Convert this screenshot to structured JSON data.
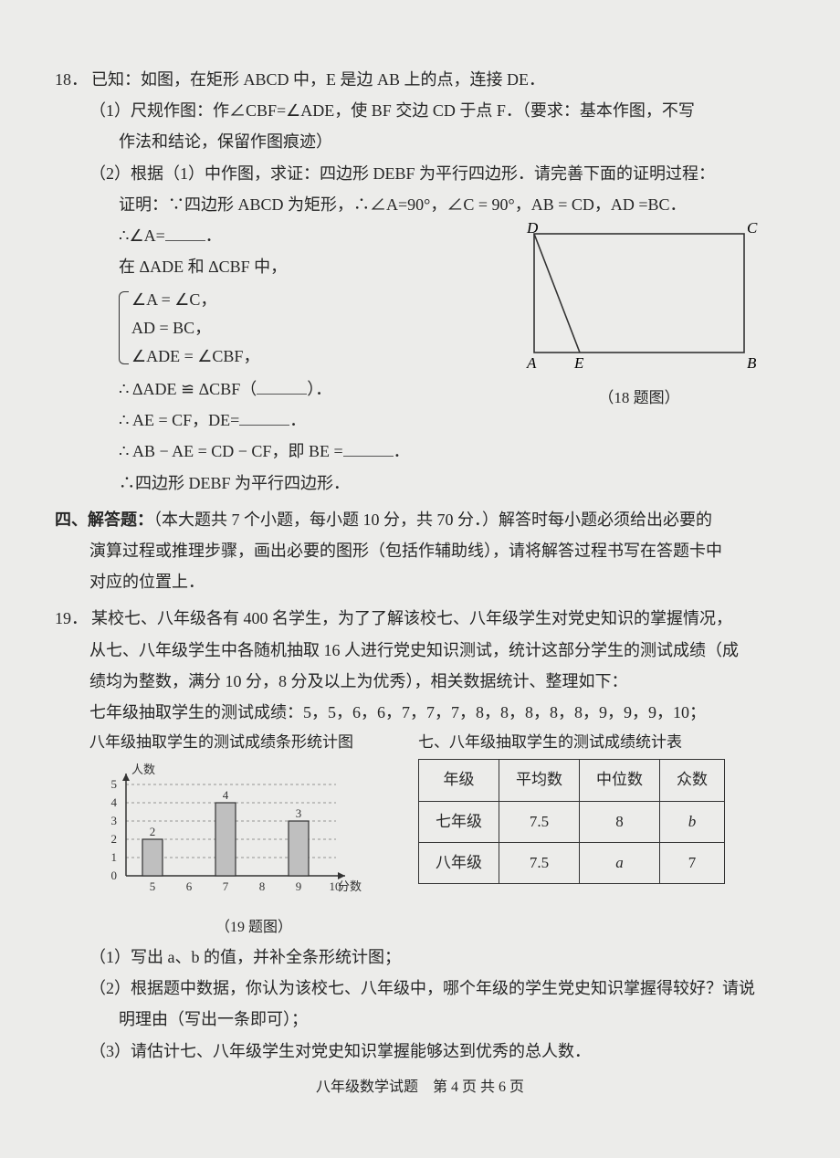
{
  "q18": {
    "num": "18．",
    "stem": "已知：如图，在矩形 ABCD 中，E 是边 AB 上的点，连接 DE．",
    "p1a": "（1）尺规作图：作∠CBF=∠ADE，使 BF 交边 CD 于点 F．（要求：基本作图，不写",
    "p1b": "作法和结论，保留作图痕迹）",
    "p2": "（2）根据（1）中作图，求证：四边形 DEBF 为平行四边形．请完善下面的证明过程：",
    "pf1": "证明：∵四边形 ABCD 为矩形，∴∠A=90°，∠C = 90°，AB = CD，AD =BC．",
    "pf2a": "∴∠A=",
    "pf2b": "．",
    "pf3": "在 ΔADE 和 ΔCBF 中，",
    "br1": "∠A = ∠C，",
    "br2": "AD = BC，",
    "br3": "∠ADE = ∠CBF，",
    "pf4a": "∴ ΔADE ≌ ΔCBF（",
    "pf4b": "）．",
    "pf5a": "∴ AE = CF，DE=",
    "pf5b": "．",
    "pf6a": "∴ AB − AE = CD − CF，即 BE =",
    "pf6b": "．",
    "pf7": "∴四边形 DEBF 为平行四边形．",
    "figcap": "（18 题图）",
    "fig": {
      "D": "D",
      "C": "C",
      "A": "A",
      "B": "B",
      "E": "E"
    }
  },
  "sec4": {
    "title": "四、解答题：",
    "rest": "（本大题共 7 个小题，每小题 10 分，共 70 分．）解答时每小题必须给出必要的",
    "l2": "演算过程或推理步骤，画出必要的图形（包括作辅助线），请将解答过程书写在答题卡中",
    "l3": "对应的位置上．"
  },
  "q19": {
    "num": "19．",
    "s1": "某校七、八年级各有 400 名学生，为了了解该校七、八年级学生对党史知识的掌握情况，",
    "s2": "从七、八年级学生中各随机抽取 16 人进行党史知识测试，统计这部分学生的测试成绩（成",
    "s3": "绩均为整数，满分 10 分，8 分及以上为优秀），相关数据统计、整理如下：",
    "s4": "七年级抽取学生的测试成绩：5，5，6，6，7，7，7，8，8，8，8，8，9，9，9，10；",
    "cap_bar": "八年级抽取学生的测试成绩条形统计图",
    "cap_tbl": "七、八年级抽取学生的测试成绩统计表",
    "bar": {
      "ylabel": "人数",
      "xlabel": "分数",
      "yticks": [
        "0",
        "1",
        "2",
        "3",
        "4",
        "5"
      ],
      "xticks": [
        "5",
        "6",
        "7",
        "8",
        "9",
        "10"
      ],
      "values": [
        2,
        0,
        4,
        0,
        3,
        0
      ],
      "known": {
        "5": 2,
        "7": 4,
        "9": 3
      },
      "color": "#bfbfbf",
      "border": "#333333",
      "axis": "#333333",
      "grid": "#777777"
    },
    "tbl": {
      "h": [
        "年级",
        "平均数",
        "中位数",
        "众数"
      ],
      "r1": [
        "七年级",
        "7.5",
        "8",
        "b"
      ],
      "r2": [
        "八年级",
        "7.5",
        "a",
        "7"
      ]
    },
    "figcap": "（19 题图）",
    "p1": "（1）写出 a、b 的值，并补全条形统计图；",
    "p2a": "（2）根据题中数据，你认为该校七、八年级中，哪个年级的学生党史知识掌握得较好？请说",
    "p2b": "明理由（写出一条即可）；",
    "p3": "（3）请估计七、八年级学生对党史知识掌握能够达到优秀的总人数．"
  },
  "footer": "八年级数学试题　第 4 页 共 6 页"
}
